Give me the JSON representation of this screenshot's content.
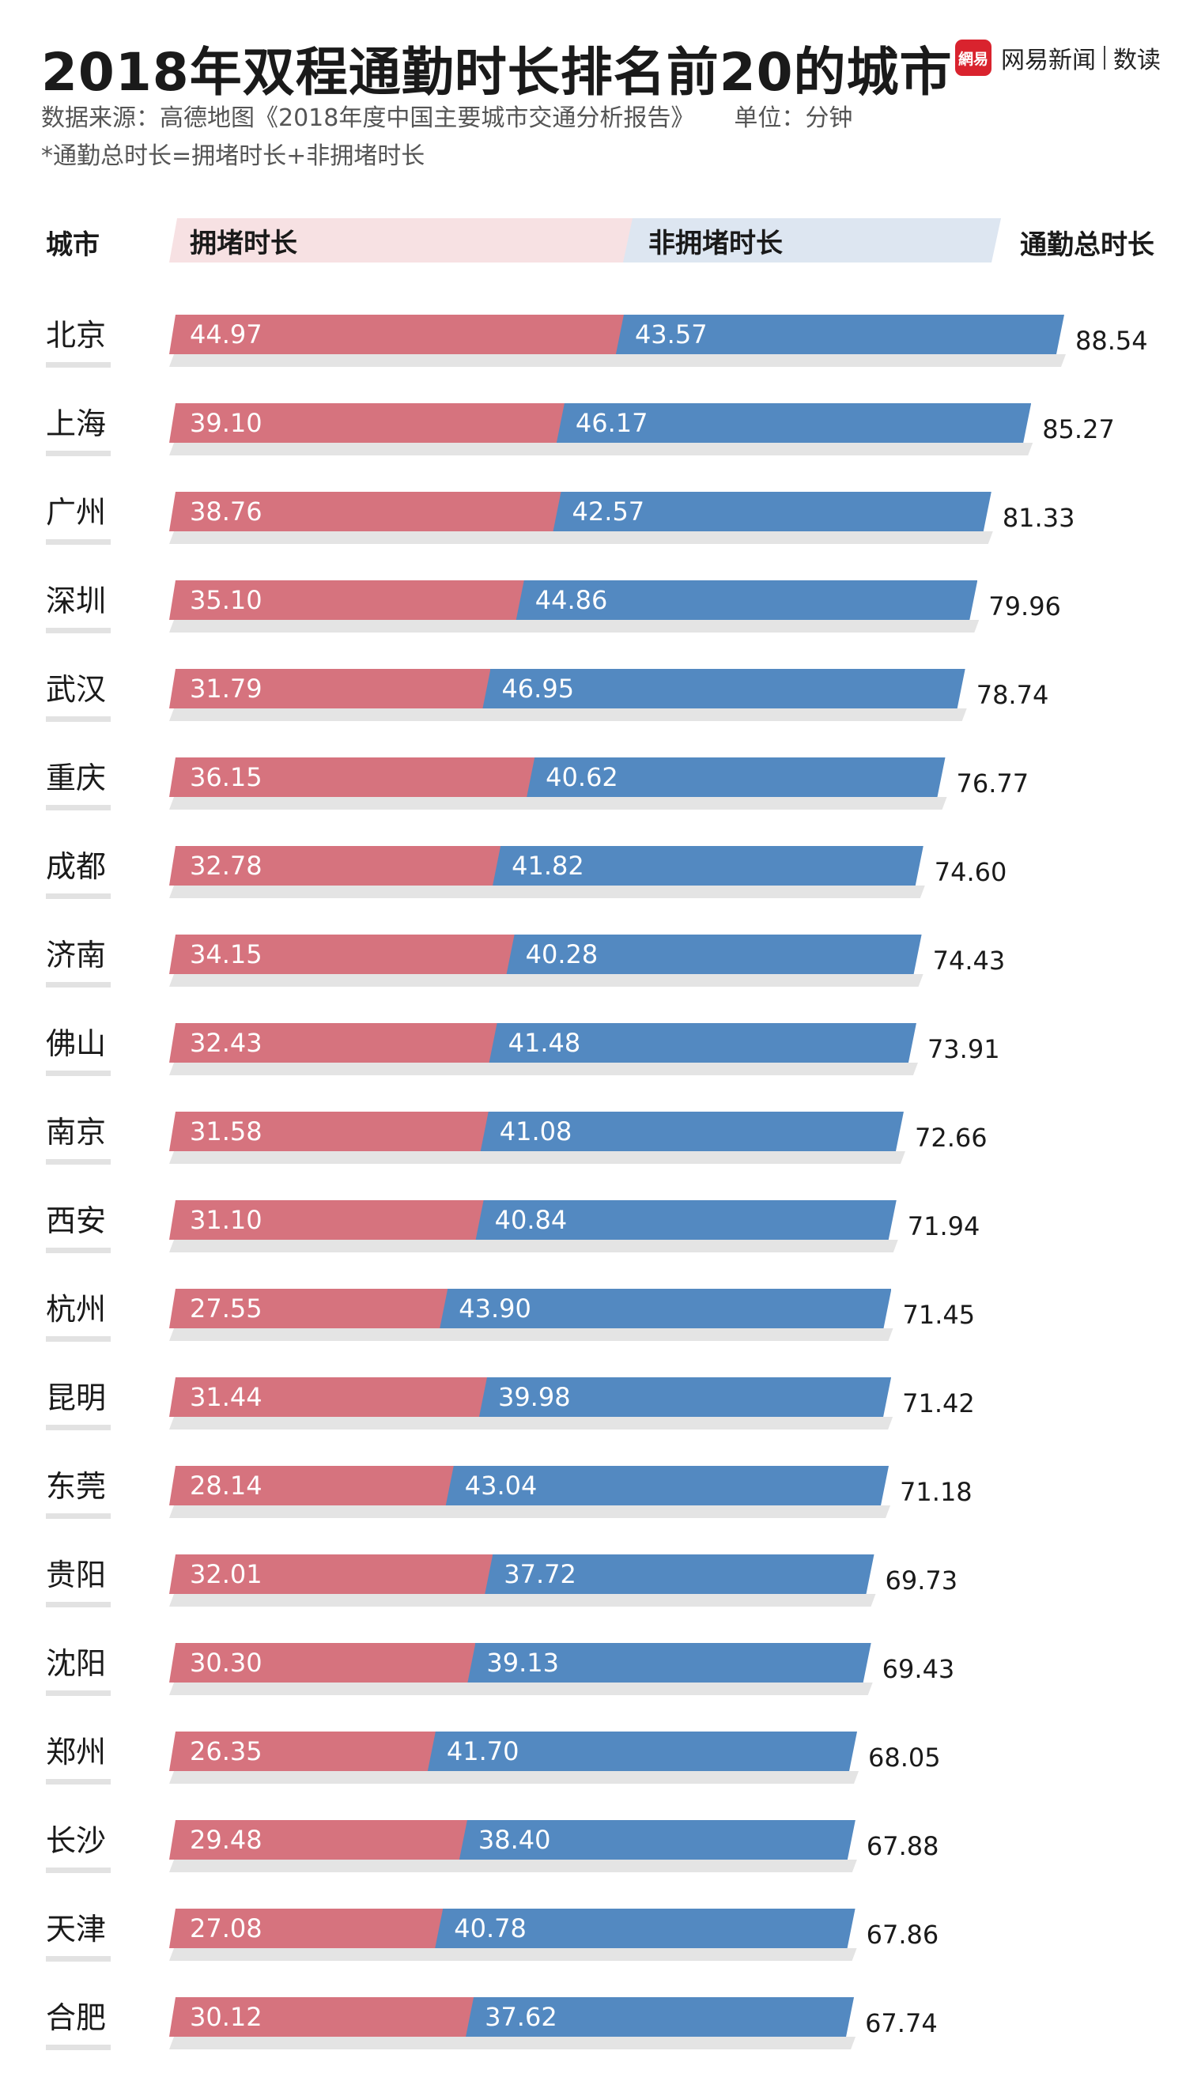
{
  "title": "2018年双程通勤时长排名前20的城市",
  "brand": {
    "mark": "網易",
    "name": "网易新闻",
    "sub": "数读"
  },
  "source": "数据来源：高德地图《2018年度中国主要城市交通分析报告》",
  "unit": "单位：分钟",
  "note": "*通勤总时长=拥堵时长+非拥堵时长",
  "colors": {
    "congested": "#d6737e",
    "non_congested": "#5389c1",
    "brand": "#d9232e"
  },
  "chart_data": {
    "type": "bar",
    "orientation": "horizontal",
    "stacked": true,
    "header": {
      "city": "城市",
      "congested": "拥堵时长",
      "non_congested": "非拥堵时长",
      "total": "通勤总时长"
    },
    "categories": [
      "北京",
      "上海",
      "广州",
      "深圳",
      "武汉",
      "重庆",
      "成都",
      "济南",
      "佛山",
      "南京",
      "西安",
      "杭州",
      "昆明",
      "东莞",
      "贵阳",
      "沈阳",
      "郑州",
      "长沙",
      "天津",
      "合肥"
    ],
    "series": [
      {
        "name": "拥堵时长",
        "values": [
          44.97,
          39.1,
          38.76,
          35.1,
          31.79,
          36.15,
          32.78,
          34.15,
          32.43,
          31.58,
          31.1,
          27.55,
          31.44,
          28.14,
          32.01,
          30.3,
          26.35,
          29.48,
          27.08,
          30.12
        ]
      },
      {
        "name": "非拥堵时长",
        "values": [
          43.57,
          46.17,
          42.57,
          44.86,
          46.95,
          40.62,
          41.82,
          40.28,
          41.48,
          41.08,
          40.84,
          43.9,
          39.98,
          43.04,
          37.72,
          39.13,
          41.7,
          38.4,
          40.78,
          37.62
        ]
      }
    ],
    "totals": [
      88.54,
      85.27,
      81.33,
      79.96,
      78.74,
      76.77,
      74.6,
      74.43,
      73.91,
      72.66,
      71.94,
      71.45,
      71.42,
      71.18,
      69.73,
      69.43,
      68.05,
      67.88,
      67.86,
      67.74
    ],
    "labels": {
      "congested": [
        "44.97",
        "39.10",
        "38.76",
        "35.10",
        "31.79",
        "36.15",
        "32.78",
        "34.15",
        "32.43",
        "31.58",
        "31.10",
        "27.55",
        "31.44",
        "28.14",
        "32.01",
        "30.30",
        "26.35",
        "29.48",
        "27.08",
        "30.12"
      ],
      "non_congested": [
        "43.57",
        "46.17",
        "42.57",
        "44.86",
        "46.95",
        "40.62",
        "41.82",
        "40.28",
        "41.48",
        "41.08",
        "40.84",
        "43.90",
        "39.98",
        "43.04",
        "37.72",
        "39.13",
        "41.70",
        "38.40",
        "40.78",
        "37.62"
      ],
      "totals": [
        "88.54",
        "85.27",
        "81.33",
        "79.96",
        "78.74",
        "76.77",
        "74.60",
        "74.43",
        "73.91",
        "72.66",
        "71.94",
        "71.45",
        "71.42",
        "71.18",
        "69.73",
        "69.43",
        "68.05",
        "67.88",
        "67.86",
        "67.74"
      ]
    },
    "xlim": [
      0,
      88.54
    ]
  }
}
